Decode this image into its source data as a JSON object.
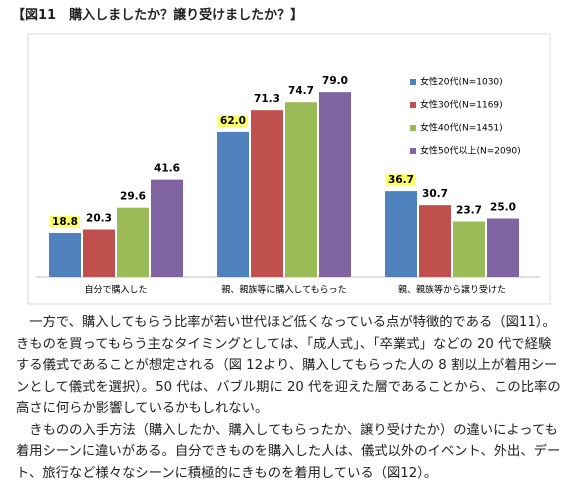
{
  "header": {
    "title": "【図11　購入しましたか？譲り受けましたか？】"
  },
  "chart_data": {
    "type": "bar",
    "categories": [
      "自分で購入した",
      "親、親族等に購入してもらった",
      "親、親族等から譲り受けた"
    ],
    "series": [
      {
        "name": "女性20代(N=1030)",
        "color": "#4f81bd",
        "values": [
          18.8,
          62.0,
          36.7
        ],
        "value_labels": [
          "18.8",
          "62.0",
          "36.7"
        ]
      },
      {
        "name": "女性30代(N=1169)",
        "color": "#c0504d",
        "values": [
          20.3,
          71.3,
          30.7
        ],
        "value_labels": [
          "20.3",
          "71.3",
          "30.7"
        ]
      },
      {
        "name": "女性40代(N=1451)",
        "color": "#9bbb59",
        "values": [
          29.6,
          74.7,
          23.7
        ],
        "value_labels": [
          "29.6",
          "74.7",
          "23.7"
        ]
      },
      {
        "name": "女性50代以上(N=2090)",
        "color": "#8064a2",
        "values": [
          41.6,
          79.0,
          25.0
        ],
        "value_labels": [
          "41.6",
          "79.0",
          "25.0"
        ]
      }
    ]
  },
  "body": {
    "paragraphs": [
      "一方で、購入してもらう比率が若い世代ほど低くなっている点が特徴的である（図11）。きものを買ってもらう主なタイミングとしては、「成人式」、「卒業式」などの 20 代で経験する儀式であることが想定される（図 12より、購入してもらった人の 8 割以上が着用シーンとして儀式を選択）。50 代は、バブル期に 20 代を迎えた層であることから、この比率の高さに何らか影響しているかもしれない。",
      "きものの入手方法（購入したか、購入してもらったか、譲り受けたか）の違いによっても着用シーンに違いがある。自分できものを購入した人は、儀式以外のイベント、外出、デート、旅行など様々なシーンに積極的にきものを着用している（図12）。"
    ]
  }
}
